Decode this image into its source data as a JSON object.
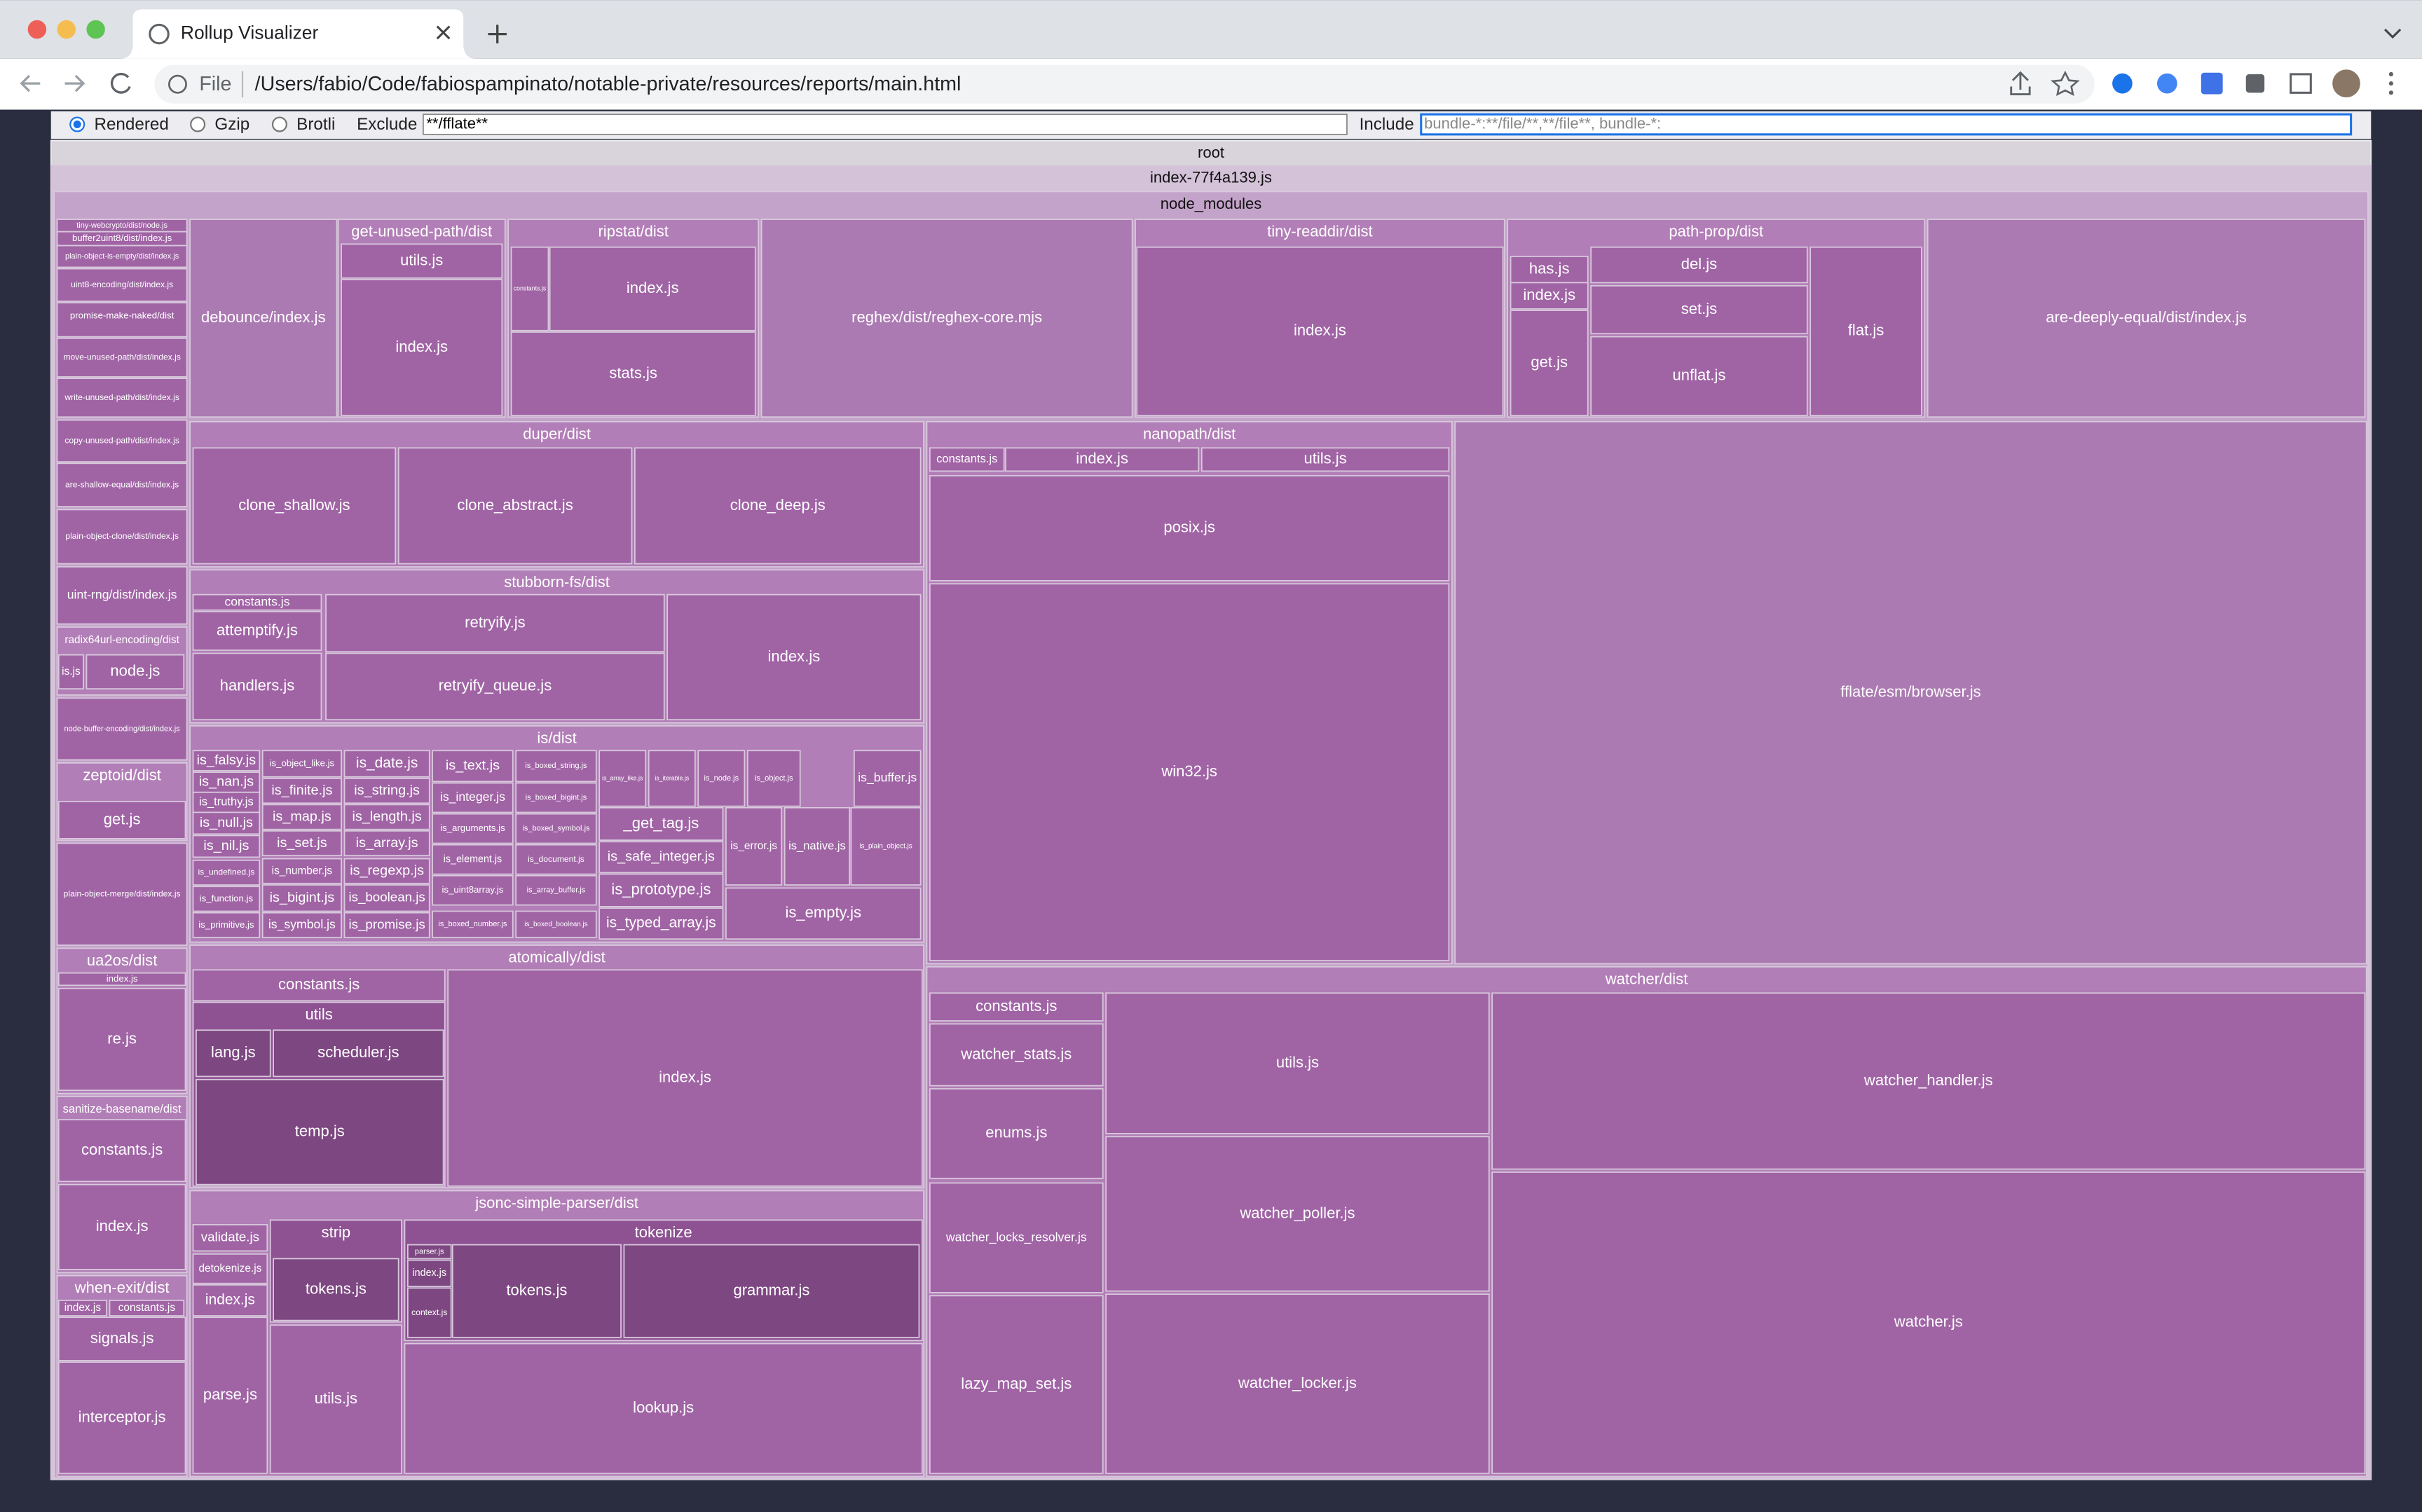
{
  "browser": {
    "tab_title": "Rollup Visualizer",
    "file_label": "File",
    "url": "/Users/fabio/Code/fabiospampinato/notable-private/resources/reports/main.html"
  },
  "controls": {
    "size_options": [
      "Rendered",
      "Gzip",
      "Brotli"
    ],
    "exclude_label": "Exclude",
    "exclude_value": "**/fflate**",
    "include_label": "Include",
    "include_placeholder": "bundle-*:**/file/**,**/file**, bundle-*:"
  },
  "treemap": {
    "nodes": [
      {
        "label": "root"
      },
      {
        "label": "index-77f4a139.js"
      },
      {
        "label": "node_modules"
      },
      {
        "label": "tiny-webcrypto/dist/node.js"
      },
      {
        "label": "buffer2uint8/dist/index.js"
      },
      {
        "label": "plain-object-is-empty/dist/index.js"
      },
      {
        "label": "uint8-encoding/dist/index.js"
      },
      {
        "label": "promise-make-naked/dist"
      },
      {
        "label": "move-unused-path/dist/index.js"
      },
      {
        "label": "write-unused-path/dist/index.js"
      },
      {
        "label": "copy-unused-path/dist/index.js"
      },
      {
        "label": "are-shallow-equal/dist/index.js"
      },
      {
        "label": "plain-object-clone/dist/index.js"
      },
      {
        "label": "uint-rng/dist/index.js"
      },
      {
        "label": "radix64url-encoding/dist"
      },
      {
        "label": "is.js"
      },
      {
        "label": "node.js"
      },
      {
        "label": "node-buffer-encoding/dist/index.js"
      },
      {
        "label": "zeptoid/dist"
      },
      {
        "label": "get.js"
      },
      {
        "label": "plain-object-merge/dist/index.js"
      },
      {
        "label": "ua2os/dist"
      },
      {
        "label": "index.js"
      },
      {
        "label": "re.js"
      },
      {
        "label": "sanitize-basename/dist"
      },
      {
        "label": "constants.js"
      },
      {
        "label": "index.js"
      },
      {
        "label": "when-exit/dist"
      },
      {
        "label": "index.js"
      },
      {
        "label": "constants.js"
      },
      {
        "label": "signals.js"
      },
      {
        "label": "interceptor.js"
      },
      {
        "label": "debounce/index.js"
      },
      {
        "label": "get-unused-path/dist"
      },
      {
        "label": "utils.js"
      },
      {
        "label": "index.js"
      },
      {
        "label": "ripstat/dist"
      },
      {
        "label": "constants.js"
      },
      {
        "label": "index.js"
      },
      {
        "label": "stats.js"
      },
      {
        "label": "reghex/dist/reghex-core.mjs"
      },
      {
        "label": "tiny-readdir/dist"
      },
      {
        "label": "index.js"
      },
      {
        "label": "path-prop/dist"
      },
      {
        "label": "has.js"
      },
      {
        "label": "index.js"
      },
      {
        "label": "get.js"
      },
      {
        "label": "del.js"
      },
      {
        "label": "set.js"
      },
      {
        "label": "unflat.js"
      },
      {
        "label": "flat.js"
      },
      {
        "label": "are-deeply-equal/dist/index.js"
      },
      {
        "label": "duper/dist"
      },
      {
        "label": "clone_shallow.js"
      },
      {
        "label": "clone_abstract.js"
      },
      {
        "label": "clone_deep.js"
      },
      {
        "label": "stubborn-fs/dist"
      },
      {
        "label": "constants.js"
      },
      {
        "label": "attemptify.js"
      },
      {
        "label": "handlers.js"
      },
      {
        "label": "retryify.js"
      },
      {
        "label": "retryify_queue.js"
      },
      {
        "label": "index.js"
      },
      {
        "label": "is/dist"
      },
      {
        "label": "is_falsy.js"
      },
      {
        "label": "is_nan.js"
      },
      {
        "label": "is_truthy.js"
      },
      {
        "label": "is_null.js"
      },
      {
        "label": "is_nil.js"
      },
      {
        "label": "is_undefined.js"
      },
      {
        "label": "is_function.js"
      },
      {
        "label": "is_primitive.js"
      },
      {
        "label": "is_object_like.js"
      },
      {
        "label": "is_finite.js"
      },
      {
        "label": "is_map.js"
      },
      {
        "label": "is_set.js"
      },
      {
        "label": "is_number.js"
      },
      {
        "label": "is_bigint.js"
      },
      {
        "label": "is_symbol.js"
      },
      {
        "label": "is_date.js"
      },
      {
        "label": "is_string.js"
      },
      {
        "label": "is_length.js"
      },
      {
        "label": "is_array.js"
      },
      {
        "label": "is_regexp.js"
      },
      {
        "label": "is_boolean.js"
      },
      {
        "label": "is_promise.js"
      },
      {
        "label": "is_text.js"
      },
      {
        "label": "is_integer.js"
      },
      {
        "label": "is_arguments.js"
      },
      {
        "label": "is_element.js"
      },
      {
        "label": "is_uint8array.js"
      },
      {
        "label": "is_boxed_number.js"
      },
      {
        "label": "is_boxed_string.js"
      },
      {
        "label": "is_boxed_bigint.js"
      },
      {
        "label": "is_boxed_symbol.js"
      },
      {
        "label": "is_document.js"
      },
      {
        "label": "is_array_buffer.js"
      },
      {
        "label": "is_boxed_boolean.js"
      },
      {
        "label": "is_array_like.js"
      },
      {
        "label": "is_iterable.js"
      },
      {
        "label": "is_node.js"
      },
      {
        "label": "is_object.js"
      },
      {
        "label": "is_buffer.js"
      },
      {
        "label": "_get_tag.js"
      },
      {
        "label": "is_safe_integer.js"
      },
      {
        "label": "is_prototype.js"
      },
      {
        "label": "is_typed_array.js"
      },
      {
        "label": "is_error.js"
      },
      {
        "label": "is_native.js"
      },
      {
        "label": "is_plain_object.js"
      },
      {
        "label": "is_empty.js"
      },
      {
        "label": "atomically/dist"
      },
      {
        "label": "constants.js"
      },
      {
        "label": "utils"
      },
      {
        "label": "lang.js"
      },
      {
        "label": "scheduler.js"
      },
      {
        "label": "temp.js"
      },
      {
        "label": "index.js"
      },
      {
        "label": "jsonc-simple-parser/dist"
      },
      {
        "label": "validate.js"
      },
      {
        "label": "detokenize.js"
      },
      {
        "label": "index.js"
      },
      {
        "label": "parse.js"
      },
      {
        "label": "strip"
      },
      {
        "label": "tokens.js"
      },
      {
        "label": "utils.js"
      },
      {
        "label": "tokenize"
      },
      {
        "label": "parser.js"
      },
      {
        "label": "index.js"
      },
      {
        "label": "context.js"
      },
      {
        "label": "tokens.js"
      },
      {
        "label": "grammar.js"
      },
      {
        "label": "lookup.js"
      },
      {
        "label": "nanopath/dist"
      },
      {
        "label": "constants.js"
      },
      {
        "label": "index.js"
      },
      {
        "label": "utils.js"
      },
      {
        "label": "posix.js"
      },
      {
        "label": "win32.js"
      },
      {
        "label": "fflate/esm/browser.js"
      },
      {
        "label": "watcher/dist"
      },
      {
        "label": "constants.js"
      },
      {
        "label": "watcher_stats.js"
      },
      {
        "label": "enums.js"
      },
      {
        "label": "watcher_locks_resolver.js"
      },
      {
        "label": "lazy_map_set.js"
      },
      {
        "label": "utils.js"
      },
      {
        "label": "watcher_poller.js"
      },
      {
        "label": "watcher_locker.js"
      },
      {
        "label": "watcher_handler.js"
      },
      {
        "label": "watcher.js"
      }
    ]
  }
}
